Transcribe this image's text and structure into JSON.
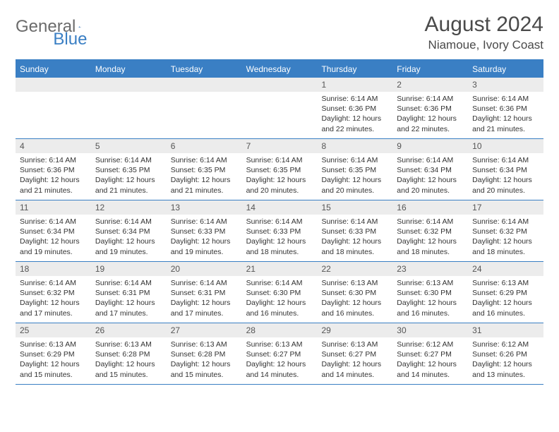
{
  "logo": {
    "text1": "General",
    "text2": "Blue"
  },
  "title": "August 2024",
  "location": "Niamoue, Ivory Coast",
  "colors": {
    "header_bg": "#3a7fc4",
    "header_text": "#ffffff",
    "daynum_bg": "#ececec",
    "border": "#3a7fc4",
    "body_text": "#333333"
  },
  "weekdays": [
    "Sunday",
    "Monday",
    "Tuesday",
    "Wednesday",
    "Thursday",
    "Friday",
    "Saturday"
  ],
  "weeks": [
    [
      null,
      null,
      null,
      null,
      {
        "n": "1",
        "sr": "6:14 AM",
        "ss": "6:36 PM",
        "dl": "12 hours and 22 minutes."
      },
      {
        "n": "2",
        "sr": "6:14 AM",
        "ss": "6:36 PM",
        "dl": "12 hours and 22 minutes."
      },
      {
        "n": "3",
        "sr": "6:14 AM",
        "ss": "6:36 PM",
        "dl": "12 hours and 21 minutes."
      }
    ],
    [
      {
        "n": "4",
        "sr": "6:14 AM",
        "ss": "6:36 PM",
        "dl": "12 hours and 21 minutes."
      },
      {
        "n": "5",
        "sr": "6:14 AM",
        "ss": "6:35 PM",
        "dl": "12 hours and 21 minutes."
      },
      {
        "n": "6",
        "sr": "6:14 AM",
        "ss": "6:35 PM",
        "dl": "12 hours and 21 minutes."
      },
      {
        "n": "7",
        "sr": "6:14 AM",
        "ss": "6:35 PM",
        "dl": "12 hours and 20 minutes."
      },
      {
        "n": "8",
        "sr": "6:14 AM",
        "ss": "6:35 PM",
        "dl": "12 hours and 20 minutes."
      },
      {
        "n": "9",
        "sr": "6:14 AM",
        "ss": "6:34 PM",
        "dl": "12 hours and 20 minutes."
      },
      {
        "n": "10",
        "sr": "6:14 AM",
        "ss": "6:34 PM",
        "dl": "12 hours and 20 minutes."
      }
    ],
    [
      {
        "n": "11",
        "sr": "6:14 AM",
        "ss": "6:34 PM",
        "dl": "12 hours and 19 minutes."
      },
      {
        "n": "12",
        "sr": "6:14 AM",
        "ss": "6:34 PM",
        "dl": "12 hours and 19 minutes."
      },
      {
        "n": "13",
        "sr": "6:14 AM",
        "ss": "6:33 PM",
        "dl": "12 hours and 19 minutes."
      },
      {
        "n": "14",
        "sr": "6:14 AM",
        "ss": "6:33 PM",
        "dl": "12 hours and 18 minutes."
      },
      {
        "n": "15",
        "sr": "6:14 AM",
        "ss": "6:33 PM",
        "dl": "12 hours and 18 minutes."
      },
      {
        "n": "16",
        "sr": "6:14 AM",
        "ss": "6:32 PM",
        "dl": "12 hours and 18 minutes."
      },
      {
        "n": "17",
        "sr": "6:14 AM",
        "ss": "6:32 PM",
        "dl": "12 hours and 18 minutes."
      }
    ],
    [
      {
        "n": "18",
        "sr": "6:14 AM",
        "ss": "6:32 PM",
        "dl": "12 hours and 17 minutes."
      },
      {
        "n": "19",
        "sr": "6:14 AM",
        "ss": "6:31 PM",
        "dl": "12 hours and 17 minutes."
      },
      {
        "n": "20",
        "sr": "6:14 AM",
        "ss": "6:31 PM",
        "dl": "12 hours and 17 minutes."
      },
      {
        "n": "21",
        "sr": "6:14 AM",
        "ss": "6:30 PM",
        "dl": "12 hours and 16 minutes."
      },
      {
        "n": "22",
        "sr": "6:13 AM",
        "ss": "6:30 PM",
        "dl": "12 hours and 16 minutes."
      },
      {
        "n": "23",
        "sr": "6:13 AM",
        "ss": "6:30 PM",
        "dl": "12 hours and 16 minutes."
      },
      {
        "n": "24",
        "sr": "6:13 AM",
        "ss": "6:29 PM",
        "dl": "12 hours and 16 minutes."
      }
    ],
    [
      {
        "n": "25",
        "sr": "6:13 AM",
        "ss": "6:29 PM",
        "dl": "12 hours and 15 minutes."
      },
      {
        "n": "26",
        "sr": "6:13 AM",
        "ss": "6:28 PM",
        "dl": "12 hours and 15 minutes."
      },
      {
        "n": "27",
        "sr": "6:13 AM",
        "ss": "6:28 PM",
        "dl": "12 hours and 15 minutes."
      },
      {
        "n": "28",
        "sr": "6:13 AM",
        "ss": "6:27 PM",
        "dl": "12 hours and 14 minutes."
      },
      {
        "n": "29",
        "sr": "6:13 AM",
        "ss": "6:27 PM",
        "dl": "12 hours and 14 minutes."
      },
      {
        "n": "30",
        "sr": "6:12 AM",
        "ss": "6:27 PM",
        "dl": "12 hours and 14 minutes."
      },
      {
        "n": "31",
        "sr": "6:12 AM",
        "ss": "6:26 PM",
        "dl": "12 hours and 13 minutes."
      }
    ]
  ],
  "labels": {
    "sunrise": "Sunrise: ",
    "sunset": "Sunset: ",
    "daylight": "Daylight: "
  }
}
